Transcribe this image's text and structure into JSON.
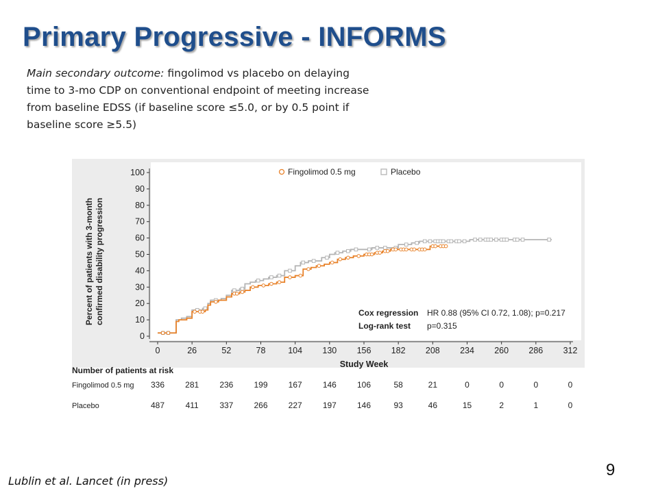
{
  "slide": {
    "title": "Primary Progressive - INFORMS",
    "subtitle_em": "Main secondary outcome:",
    "subtitle_rest": " fingolimod vs placebo on delaying time to 3-mo CDP on conventional endpoint of meeting increase from baseline EDSS (if baseline score ≤5.0, or by 0.5 point if baseline score ≥5.5)",
    "citation": "Lublin et al. Lancet (in press)",
    "page_number": "9"
  },
  "chart_data": {
    "type": "line",
    "step": true,
    "xlabel": "Study Week",
    "ylabel": "Percent of patients with 3-month confirmed disability progression",
    "ylabel_lines": [
      "Percent of patients with 3-month",
      "confirmed disability progression"
    ],
    "xlim": [
      0,
      312
    ],
    "ylim": [
      0,
      100
    ],
    "xticks": [
      0,
      26,
      52,
      78,
      104,
      130,
      156,
      182,
      208,
      234,
      260,
      286,
      312
    ],
    "yticks": [
      0,
      10,
      20,
      30,
      40,
      50,
      60,
      70,
      80,
      90,
      100
    ],
    "legend_position": "top-right",
    "colors": {
      "fingolimod": "#e8822a",
      "placebo": "#b4b4b4"
    },
    "series": [
      {
        "name": "Fingolimod 0.5 mg",
        "marker": "circle",
        "points": [
          [
            0,
            2
          ],
          [
            12,
            2
          ],
          [
            14,
            9
          ],
          [
            16,
            10
          ],
          [
            22,
            11
          ],
          [
            26,
            15
          ],
          [
            36,
            16
          ],
          [
            38,
            19
          ],
          [
            40,
            21
          ],
          [
            46,
            22
          ],
          [
            52,
            24
          ],
          [
            56,
            26
          ],
          [
            62,
            27
          ],
          [
            66,
            28
          ],
          [
            70,
            30
          ],
          [
            76,
            31
          ],
          [
            84,
            32
          ],
          [
            90,
            33
          ],
          [
            96,
            36
          ],
          [
            104,
            37
          ],
          [
            110,
            41
          ],
          [
            116,
            42
          ],
          [
            120,
            43
          ],
          [
            126,
            44
          ],
          [
            130,
            45
          ],
          [
            136,
            47
          ],
          [
            142,
            48
          ],
          [
            148,
            49
          ],
          [
            156,
            50
          ],
          [
            164,
            51
          ],
          [
            170,
            52
          ],
          [
            176,
            53
          ],
          [
            190,
            53
          ],
          [
            196,
            53
          ],
          [
            204,
            53
          ],
          [
            206,
            55
          ],
          [
            212,
            55
          ],
          [
            218,
            55
          ]
        ],
        "censor_x": [
          4,
          8,
          28,
          32,
          34,
          44,
          58,
          60,
          64,
          72,
          80,
          86,
          92,
          100,
          108,
          114,
          122,
          132,
          138,
          144,
          152,
          158,
          160,
          162,
          166,
          168,
          172,
          174,
          178,
          180,
          184,
          186,
          188,
          192,
          194,
          198,
          200,
          202,
          208,
          210,
          214,
          216,
          218
        ]
      },
      {
        "name": "Placebo",
        "marker": "square",
        "points": [
          [
            0,
            2
          ],
          [
            12,
            2
          ],
          [
            14,
            10
          ],
          [
            18,
            11
          ],
          [
            22,
            12
          ],
          [
            26,
            16
          ],
          [
            34,
            17
          ],
          [
            38,
            20
          ],
          [
            40,
            22
          ],
          [
            48,
            23
          ],
          [
            52,
            25
          ],
          [
            56,
            28
          ],
          [
            62,
            29
          ],
          [
            66,
            32
          ],
          [
            70,
            33
          ],
          [
            74,
            34
          ],
          [
            80,
            35
          ],
          [
            84,
            36
          ],
          [
            90,
            37
          ],
          [
            96,
            40
          ],
          [
            104,
            43
          ],
          [
            108,
            45
          ],
          [
            114,
            46
          ],
          [
            124,
            48
          ],
          [
            130,
            50
          ],
          [
            134,
            51
          ],
          [
            140,
            52
          ],
          [
            146,
            53
          ],
          [
            156,
            53
          ],
          [
            162,
            54
          ],
          [
            176,
            54
          ],
          [
            182,
            56
          ],
          [
            192,
            57
          ],
          [
            198,
            58
          ],
          [
            204,
            58
          ],
          [
            234,
            58
          ],
          [
            236,
            59
          ],
          [
            298,
            59
          ]
        ],
        "censor_x": [
          4,
          8,
          30,
          36,
          44,
          58,
          64,
          76,
          86,
          92,
          100,
          110,
          118,
          128,
          136,
          144,
          150,
          160,
          166,
          172,
          180,
          188,
          196,
          202,
          206,
          210,
          212,
          214,
          216,
          220,
          222,
          226,
          228,
          232,
          240,
          244,
          248,
          250,
          252,
          256,
          260,
          262,
          264,
          270,
          272,
          276,
          296
        ]
      }
    ],
    "stats": [
      {
        "label": "Cox regression",
        "value": "HR 0.88 (95% CI 0.72, 1.08); p=0.217"
      },
      {
        "label": "Log-rank test",
        "value": "p=0.315"
      }
    ],
    "risk_table": {
      "title": "Number of patients at risk",
      "rows": [
        {
          "label": "Fingolimod 0.5 mg",
          "values": [
            336,
            281,
            236,
            199,
            167,
            146,
            106,
            58,
            21,
            0,
            0,
            0,
            0
          ]
        },
        {
          "label": "Placebo",
          "values": [
            487,
            411,
            337,
            266,
            227,
            197,
            146,
            93,
            46,
            15,
            2,
            1,
            0
          ]
        }
      ]
    }
  }
}
